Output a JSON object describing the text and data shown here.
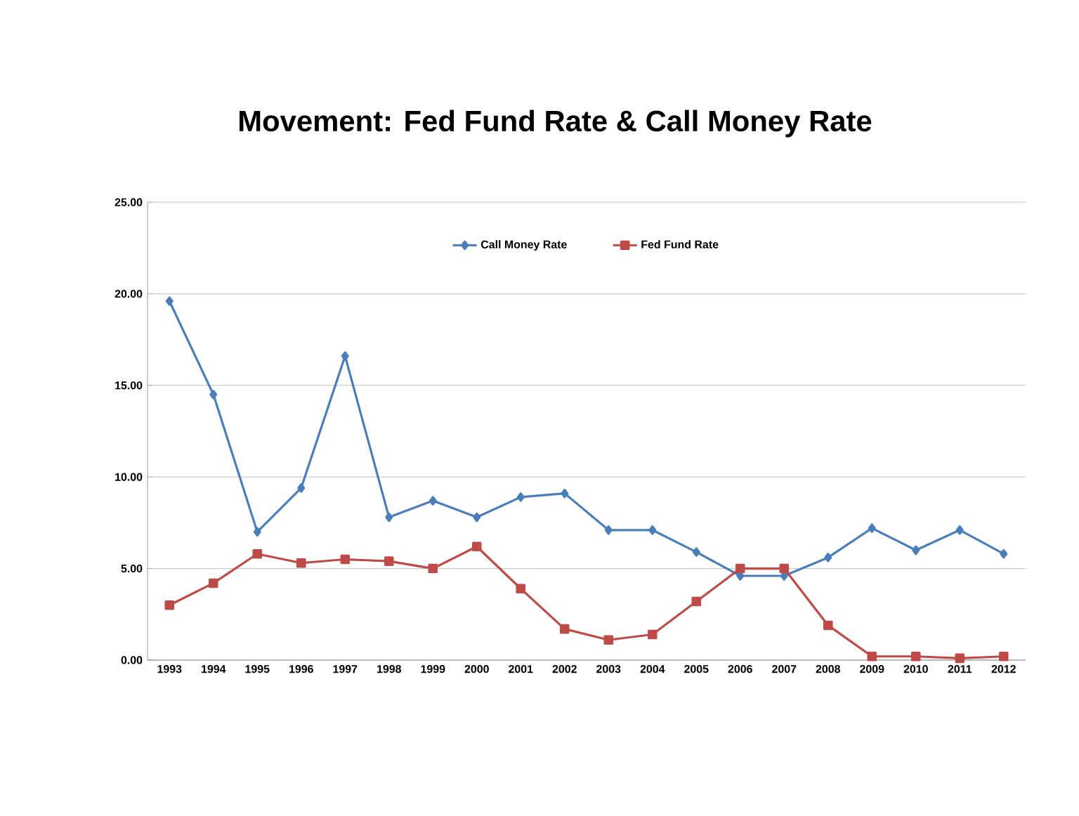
{
  "chart_data": {
    "type": "line",
    "title": "Movement: Fed Fund Rate & Call Money Rate",
    "categories": [
      "1993",
      "1994",
      "1995",
      "1996",
      "1997",
      "1998",
      "1999",
      "2000",
      "2001",
      "2002",
      "2003",
      "2004",
      "2005",
      "2006",
      "2007",
      "2008",
      "2009",
      "2010",
      "2011",
      "2012"
    ],
    "series": [
      {
        "name": "Call Money Rate",
        "color": "#4a7ebb",
        "marker": "diamond",
        "values": [
          19.6,
          14.5,
          7.0,
          9.4,
          16.6,
          7.8,
          8.7,
          7.8,
          8.9,
          9.1,
          7.1,
          7.1,
          5.9,
          4.6,
          4.6,
          5.6,
          7.2,
          6.0,
          7.1,
          5.8
        ]
      },
      {
        "name": "Fed Fund Rate",
        "color": "#be4b48",
        "marker": "square",
        "values": [
          3.0,
          4.2,
          5.8,
          5.3,
          5.5,
          5.4,
          5.0,
          6.2,
          3.9,
          1.7,
          1.1,
          1.4,
          3.2,
          5.0,
          5.0,
          1.9,
          0.2,
          0.2,
          0.1,
          0.2
        ]
      }
    ],
    "ylim": [
      0,
      25
    ],
    "yticks": [
      {
        "value": 0,
        "label": "0.00"
      },
      {
        "value": 5,
        "label": "5.00"
      },
      {
        "value": 10,
        "label": "10.00"
      },
      {
        "value": 15,
        "label": "15.00"
      },
      {
        "value": 20,
        "label": "20.00"
      },
      {
        "value": 25,
        "label": "25.00"
      }
    ],
    "grid": "y",
    "legend": "top"
  }
}
